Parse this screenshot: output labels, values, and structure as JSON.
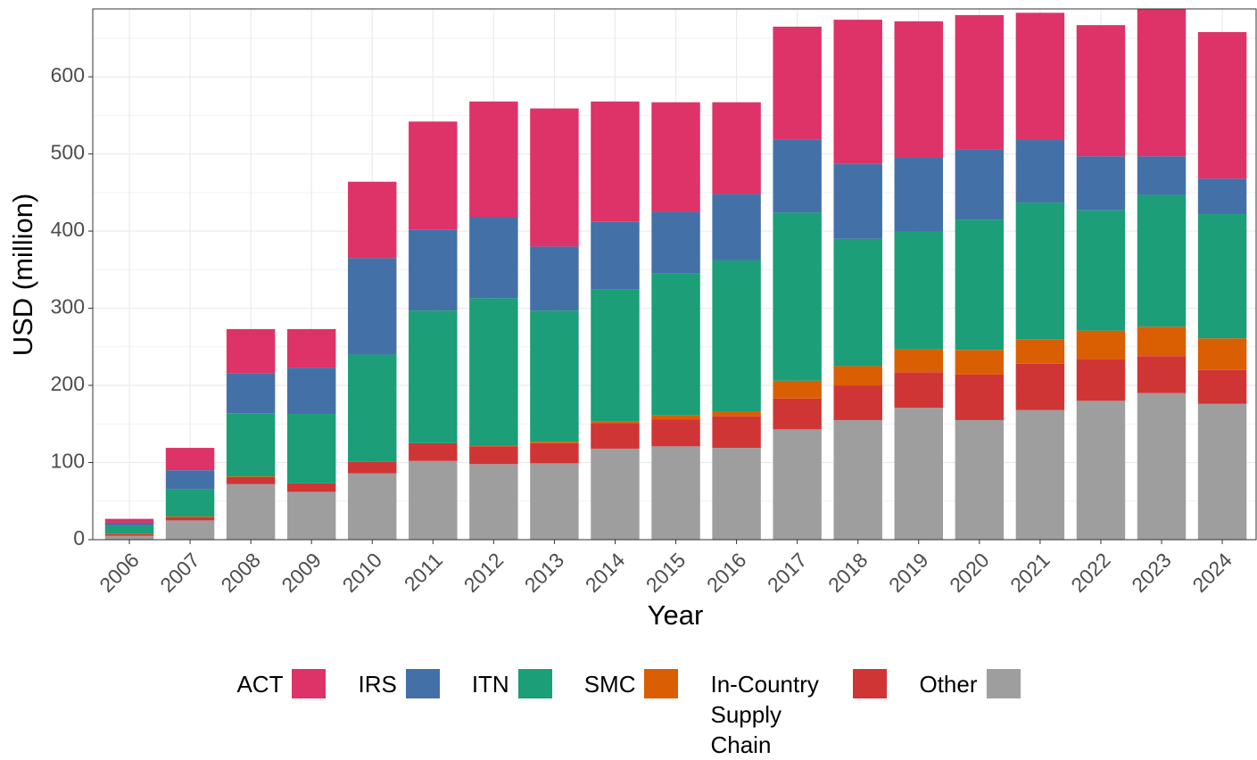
{
  "chart_data": {
    "type": "stacked_bar",
    "x_label": "Year",
    "y_label": "USD (million)",
    "categories": [
      "2006",
      "2007",
      "2008",
      "2009",
      "2010",
      "2011",
      "2012",
      "2013",
      "2014",
      "2015",
      "2016",
      "2017",
      "2018",
      "2019",
      "2020",
      "2021",
      "2022",
      "2023",
      "2024"
    ],
    "series": [
      {
        "name": "Other",
        "color": "#9e9e9e",
        "values": [
          5,
          25,
          72,
          62,
          86,
          102,
          98,
          99,
          118,
          121,
          119,
          143,
          155,
          171,
          155,
          168,
          180,
          190,
          176
        ]
      },
      {
        "name": "In-Country Supply Chain",
        "color": "#d03535",
        "values": [
          2,
          4,
          9,
          11,
          15,
          23,
          23,
          26,
          33,
          35,
          41,
          40,
          45,
          46,
          59,
          60,
          54,
          48,
          44
        ]
      },
      {
        "name": "SMC",
        "color": "#d95f02",
        "values": [
          1,
          1,
          1,
          0,
          0,
          0,
          1,
          2,
          2,
          5,
          6,
          23,
          25,
          30,
          32,
          32,
          37,
          38,
          41
        ]
      },
      {
        "name": "ITN",
        "color": "#1c9e78",
        "values": [
          10,
          35,
          82,
          90,
          139,
          172,
          191,
          170,
          171,
          184,
          196,
          218,
          165,
          152,
          169,
          177,
          156,
          171,
          161
        ]
      },
      {
        "name": "IRS",
        "color": "#4470a8",
        "values": [
          4,
          25,
          52,
          60,
          125,
          105,
          105,
          83,
          88,
          80,
          86,
          95,
          97,
          97,
          91,
          81,
          70,
          50,
          46
        ]
      },
      {
        "name": "ACT",
        "color": "#dd3368",
        "values": [
          5,
          29,
          57,
          50,
          99,
          140,
          150,
          179,
          156,
          142,
          119,
          146,
          187,
          176,
          174,
          165,
          170,
          191,
          190
        ]
      }
    ],
    "legend_order": [
      "ACT",
      "IRS",
      "ITN",
      "SMC",
      "In-Country Supply Chain",
      "Other"
    ],
    "ylim": [
      0,
      688
    ],
    "yticks": [
      0,
      100,
      200,
      300,
      400,
      500,
      600
    ],
    "grid": true,
    "legend_position": "bottom"
  }
}
